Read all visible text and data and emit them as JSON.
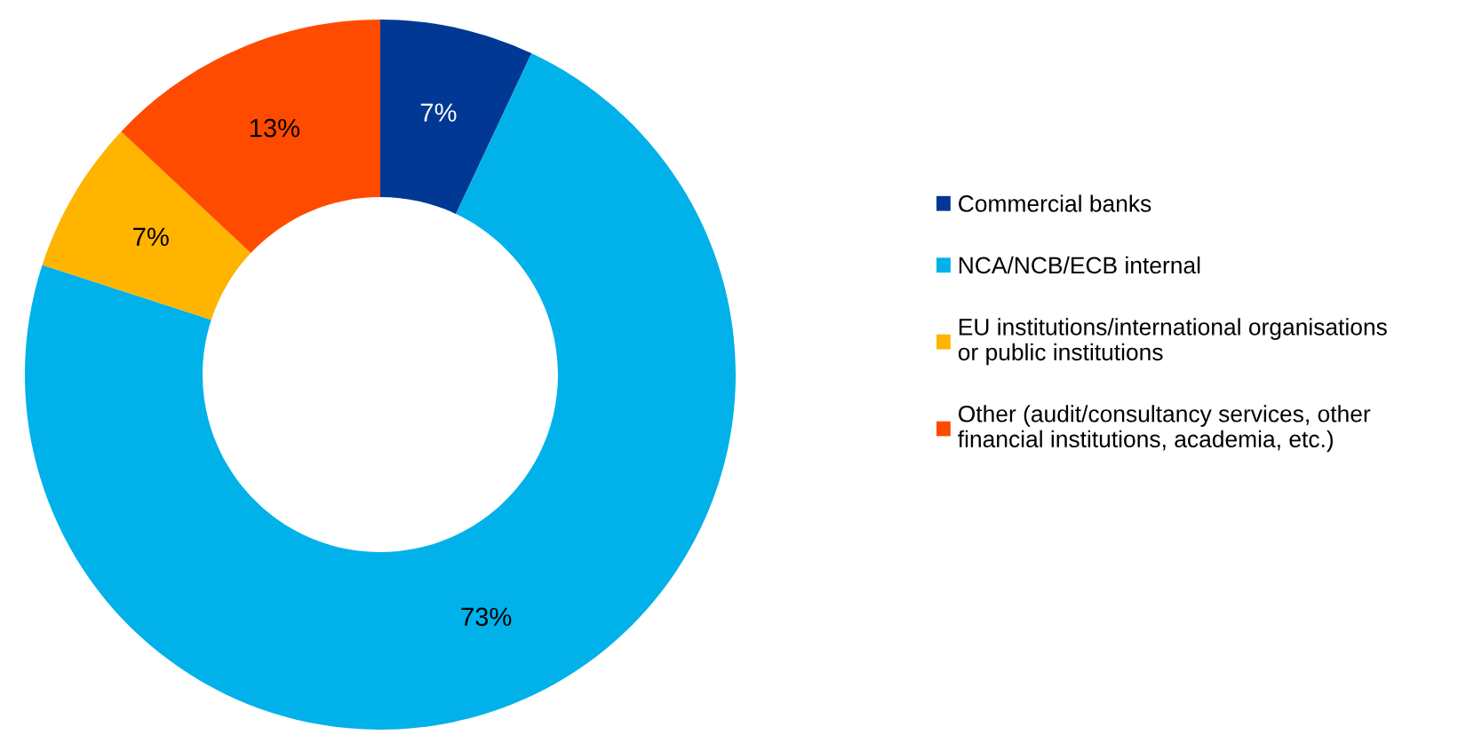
{
  "chart_data": {
    "type": "donut",
    "categories": [
      "Commercial banks",
      "NCA/NCB/ECB internal",
      "EU institutions/international organisations\nor public institutions",
      "Other (audit/consultancy services, other\nfinancial institutions, academia, etc.)"
    ],
    "values": [
      7,
      73,
      7,
      13
    ],
    "colors": [
      "#003894",
      "#00b1ea",
      "#ffb400",
      "#ff4b00"
    ],
    "value_labels": [
      "7%",
      "73%",
      "7%",
      "13%"
    ],
    "legend": "right"
  }
}
